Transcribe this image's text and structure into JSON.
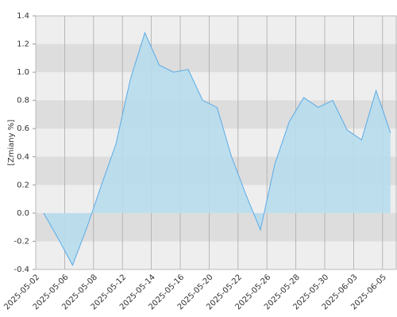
{
  "chart_data": {
    "type": "area",
    "y_label": "[Zmiany %]",
    "categories": [
      "2025-05-02",
      null,
      "2025-05-06",
      null,
      "2025-05-08",
      null,
      "2025-05-12",
      null,
      "2025-05-14",
      null,
      "2025-05-16",
      null,
      "2025-05-20",
      null,
      "2025-05-22",
      null,
      "2025-05-26",
      null,
      "2025-05-28",
      null,
      "2025-05-30",
      null,
      "2025-06-03",
      null,
      "2025-06-05"
    ],
    "values": [
      0,
      -0.18,
      -0.37,
      -0.1,
      0.2,
      0.49,
      0.95,
      1.28,
      1.05,
      1.0,
      1.02,
      0.8,
      0.75,
      0.4,
      0.13,
      -0.12,
      0.35,
      0.65,
      0.82,
      0.75,
      0.8,
      0.59,
      0.52,
      0.87,
      0.57
    ],
    "color": "#5aabe8",
    "fill_color": "#b7dcec",
    "ylim": [
      -0.4,
      1.4
    ],
    "yticks": [
      {
        "value": -0.4,
        "label": "-0.4"
      },
      {
        "value": -0.2,
        "label": "-0.2"
      },
      {
        "value": 0,
        "label": "0.0"
      },
      0.2,
      0.4,
      0.6,
      0.8,
      {
        "value": 1.0,
        "label": "1.0"
      },
      1.2,
      1.4
    ],
    "grid": true
  }
}
